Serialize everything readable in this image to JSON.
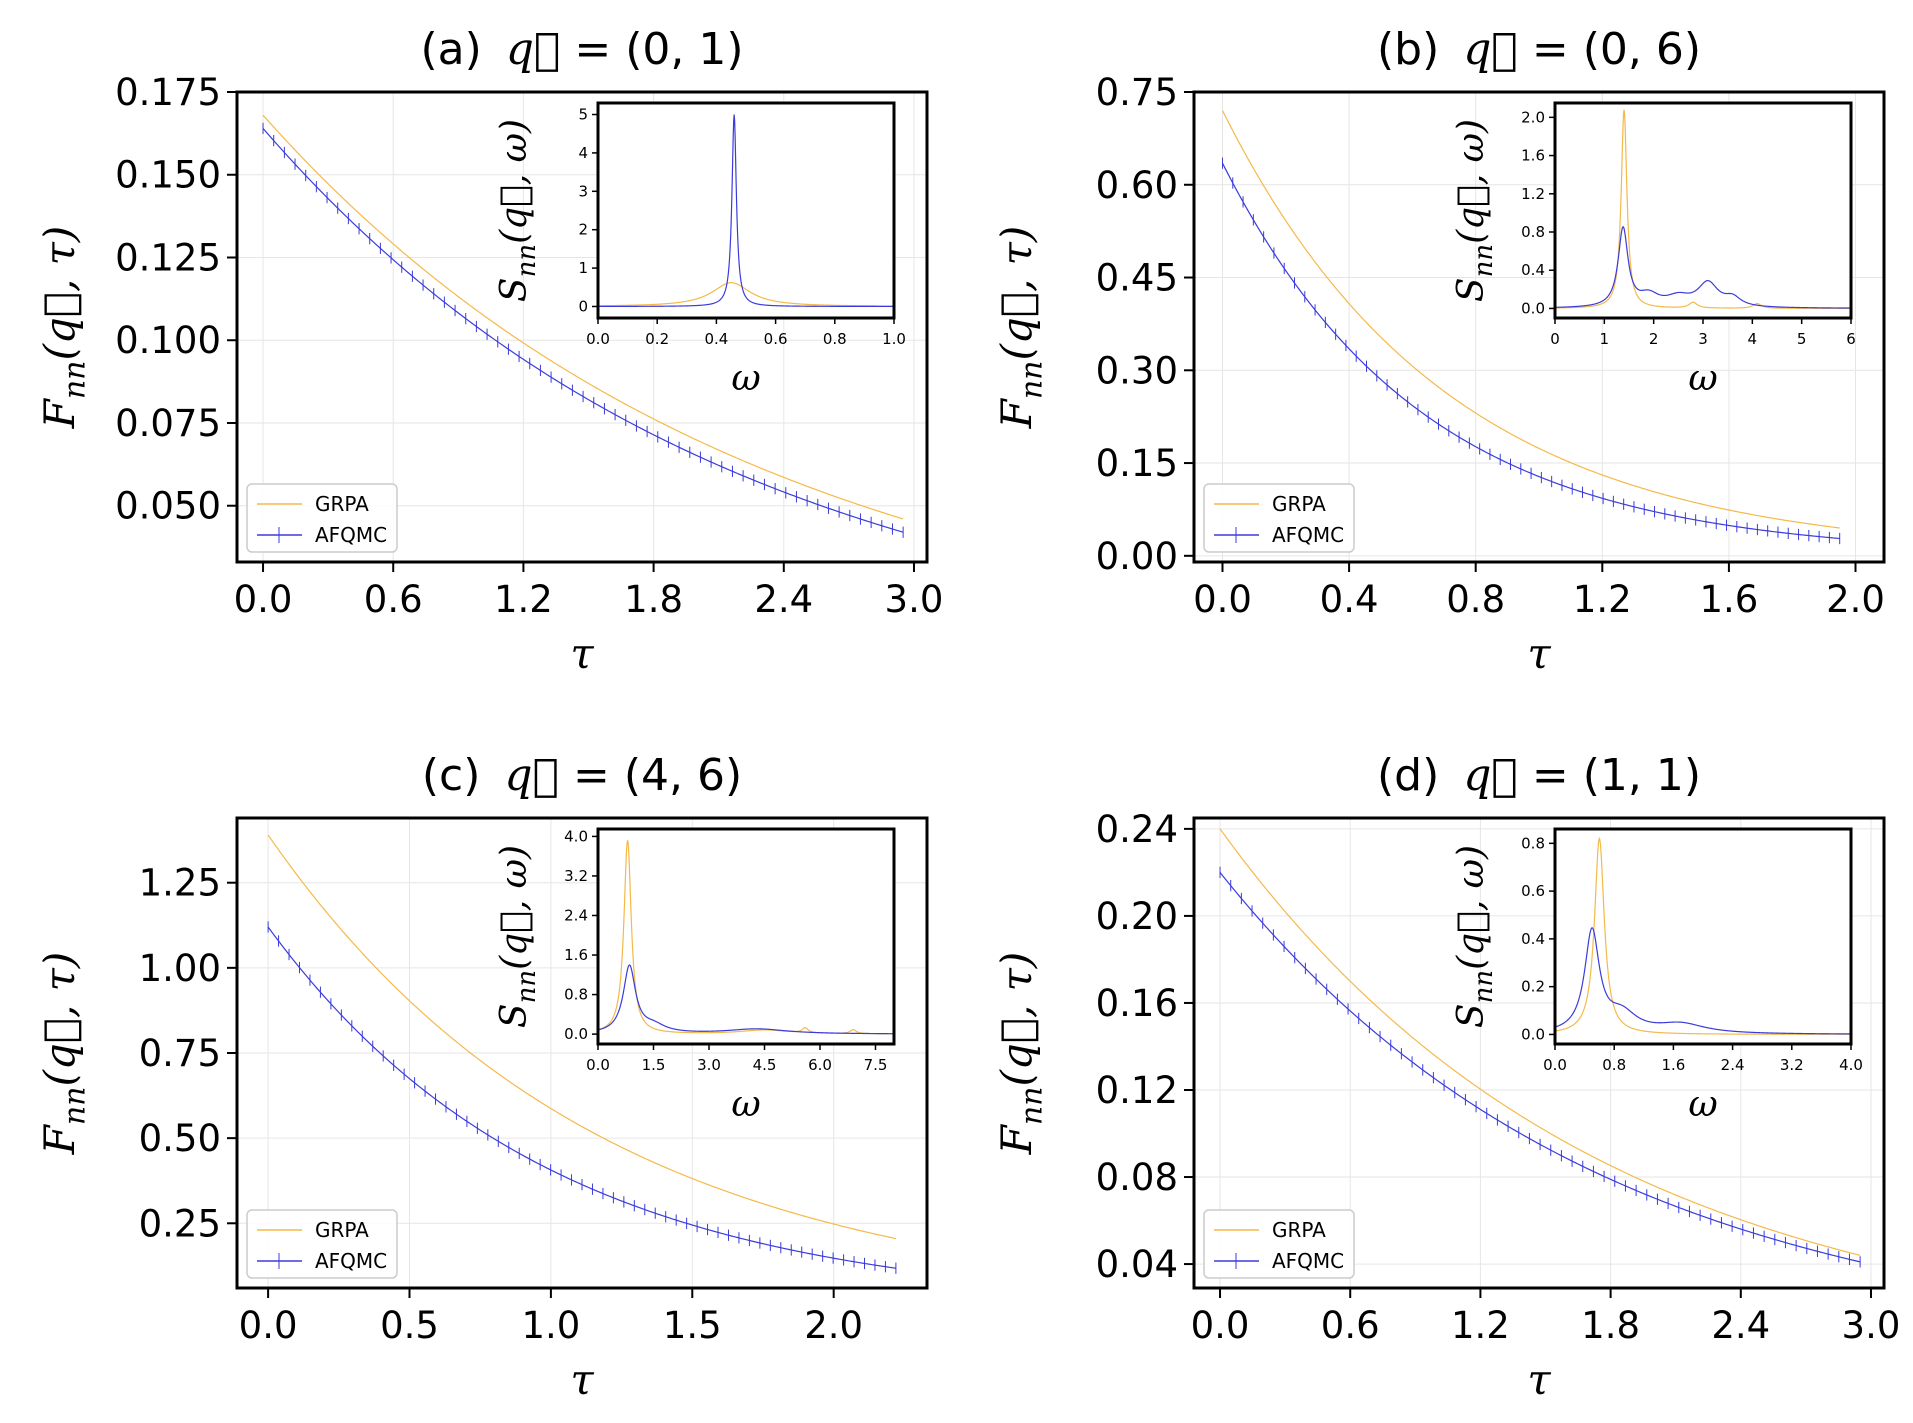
{
  "chart_data": [
    {
      "id": "a",
      "type": "line",
      "title_tag": "(a)",
      "title_q": "(0, 1)",
      "xlabel": "τ",
      "ylabel": "F_nn(q, τ)",
      "xlim": [
        -0.12,
        3.06
      ],
      "ylim": [
        0.033,
        0.175
      ],
      "xticks": [
        "0.0",
        "0.6",
        "1.2",
        "1.8",
        "2.4",
        "3.0"
      ],
      "yticks": [
        "0.050",
        "0.075",
        "0.100",
        "0.125",
        "0.150",
        "0.175"
      ],
      "legend": {
        "position": "lower-left",
        "entries": [
          "GRPA",
          "AFQMC"
        ]
      },
      "series": [
        {
          "name": "GRPA",
          "color": "#f5b94a",
          "errorbars": false,
          "x0": 0.0,
          "x1": 2.95,
          "y0": 0.168,
          "y1": 0.046,
          "n": 60
        },
        {
          "name": "AFQMC",
          "color": "#3b3bdc",
          "errorbars": true,
          "x0": 0.0,
          "x1": 2.95,
          "y0": 0.164,
          "y1": 0.042,
          "n": 60
        }
      ],
      "inset": {
        "xlabel": "ω",
        "ylabel": "S_nn(q, ω)",
        "xlim": [
          0,
          1.0
        ],
        "ylim": [
          -0.3,
          5.3
        ],
        "xticks": [
          "0.0",
          "0.2",
          "0.4",
          "0.6",
          "0.8",
          "1.0"
        ],
        "yticks": [
          "0",
          "1",
          "2",
          "3",
          "4",
          "5"
        ],
        "series": [
          {
            "name": "GRPA",
            "color": "#f5b94a",
            "peaks": [
              {
                "x": 0.45,
                "h": 0.62,
                "w": 0.08
              }
            ]
          },
          {
            "name": "AFQMC",
            "color": "#3b3bdc",
            "peaks": [
              {
                "x": 0.46,
                "h": 5.0,
                "w": 0.009
              }
            ]
          }
        ]
      }
    },
    {
      "id": "b",
      "type": "line",
      "title_tag": "(b)",
      "title_q": "(0, 6)",
      "xlabel": "τ",
      "ylabel": "F_nn(q, τ)",
      "xlim": [
        -0.09,
        2.09
      ],
      "ylim": [
        -0.01,
        0.75
      ],
      "xticks": [
        "0.0",
        "0.4",
        "0.8",
        "1.2",
        "1.6",
        "2.0"
      ],
      "yticks": [
        "0.00",
        "0.15",
        "0.30",
        "0.45",
        "0.60",
        "0.75"
      ],
      "legend": {
        "position": "lower-left",
        "entries": [
          "GRPA",
          "AFQMC"
        ]
      },
      "series": [
        {
          "name": "GRPA",
          "color": "#f5b94a",
          "errorbars": false,
          "x0": 0.0,
          "x1": 1.95,
          "y0": 0.72,
          "y1": 0.045,
          "n": 60
        },
        {
          "name": "AFQMC",
          "color": "#3b3bdc",
          "errorbars": true,
          "x0": 0.0,
          "x1": 1.95,
          "y0": 0.635,
          "y1": 0.028,
          "n": 60
        }
      ],
      "inset": {
        "xlabel": "ω",
        "ylabel": "S_nn(q, ω)",
        "xlim": [
          0,
          6
        ],
        "ylim": [
          -0.1,
          2.15
        ],
        "xticks": [
          "0",
          "1",
          "2",
          "3",
          "4",
          "5",
          "6"
        ],
        "yticks": [
          "0.0",
          "0.4",
          "0.8",
          "1.2",
          "1.6",
          "2.0"
        ],
        "series": [
          {
            "name": "GRPA",
            "color": "#f5b94a",
            "peaks": [
              {
                "x": 1.4,
                "h": 2.08,
                "w": 0.07
              },
              {
                "x": 2.8,
                "h": 0.06,
                "w": 0.1
              },
              {
                "x": 4.1,
                "h": 0.05,
                "w": 0.1
              }
            ]
          },
          {
            "name": "AFQMC",
            "color": "#3b3bdc",
            "peaks": [
              {
                "x": 1.38,
                "h": 0.82,
                "w": 0.12
              },
              {
                "x": 1.9,
                "h": 0.12,
                "w": 0.25
              },
              {
                "x": 2.5,
                "h": 0.1,
                "w": 0.3
              },
              {
                "x": 3.1,
                "h": 0.25,
                "w": 0.25
              },
              {
                "x": 3.6,
                "h": 0.09,
                "w": 0.2
              }
            ]
          }
        ]
      }
    },
    {
      "id": "c",
      "type": "line",
      "title_tag": "(c)",
      "title_q": "(4, 6)",
      "xlabel": "τ",
      "ylabel": "F_nn(q, τ)",
      "xlim": [
        -0.11,
        2.33
      ],
      "ylim": [
        0.06,
        1.44
      ],
      "xticks": [
        "0.0",
        "0.5",
        "1.0",
        "1.5",
        "2.0"
      ],
      "yticks": [
        "0.25",
        "0.50",
        "0.75",
        "1.00",
        "1.25"
      ],
      "legend": {
        "position": "lower-left",
        "entries": [
          "GRPA",
          "AFQMC"
        ]
      },
      "series": [
        {
          "name": "GRPA",
          "color": "#f5b94a",
          "errorbars": false,
          "x0": 0.0,
          "x1": 2.22,
          "y0": 1.39,
          "y1": 0.205,
          "n": 60
        },
        {
          "name": "AFQMC",
          "color": "#3b3bdc",
          "errorbars": true,
          "x0": 0.0,
          "x1": 2.22,
          "y0": 1.12,
          "y1": 0.118,
          "n": 60
        }
      ],
      "inset": {
        "xlabel": "ω",
        "ylabel": "S_nn(q, ω)",
        "xlim": [
          0,
          8.0
        ],
        "ylim": [
          -0.2,
          4.15
        ],
        "xticks": [
          "0.0",
          "1.5",
          "3.0",
          "4.5",
          "6.0",
          "7.5"
        ],
        "yticks": [
          "0.0",
          "0.8",
          "1.6",
          "2.4",
          "3.2",
          "4.0"
        ],
        "series": [
          {
            "name": "GRPA",
            "color": "#f5b94a",
            "peaks": [
              {
                "x": 0.8,
                "h": 3.92,
                "w": 0.12
              },
              {
                "x": 4.5,
                "h": 0.08,
                "w": 0.8
              },
              {
                "x": 5.6,
                "h": 0.1,
                "w": 0.1
              },
              {
                "x": 6.9,
                "h": 0.08,
                "w": 0.1
              }
            ]
          },
          {
            "name": "AFQMC",
            "color": "#3b3bdc",
            "peaks": [
              {
                "x": 0.85,
                "h": 1.35,
                "w": 0.2
              },
              {
                "x": 1.5,
                "h": 0.15,
                "w": 0.4
              },
              {
                "x": 4.3,
                "h": 0.1,
                "w": 1.0
              }
            ]
          }
        ]
      }
    },
    {
      "id": "d",
      "type": "line",
      "title_tag": "(d)",
      "title_q": "(1, 1)",
      "xlabel": "τ",
      "ylabel": "F_nn(q, τ)",
      "xlim": [
        -0.12,
        3.06
      ],
      "ylim": [
        0.029,
        0.245
      ],
      "xticks": [
        "0.0",
        "0.6",
        "1.2",
        "1.8",
        "2.4",
        "3.0"
      ],
      "yticks": [
        "0.04",
        "0.08",
        "0.12",
        "0.16",
        "0.20",
        "0.24"
      ],
      "legend": {
        "position": "lower-left",
        "entries": [
          "GRPA",
          "AFQMC"
        ]
      },
      "series": [
        {
          "name": "GRPA",
          "color": "#f5b94a",
          "errorbars": false,
          "x0": 0.0,
          "x1": 2.95,
          "y0": 0.24,
          "y1": 0.044,
          "n": 60
        },
        {
          "name": "AFQMC",
          "color": "#3b3bdc",
          "errorbars": true,
          "x0": 0.0,
          "x1": 2.95,
          "y0": 0.22,
          "y1": 0.041,
          "n": 60
        }
      ],
      "inset": {
        "xlabel": "ω",
        "ylabel": "S_nn(q, ω)",
        "xlim": [
          0,
          4.0
        ],
        "ylim": [
          -0.04,
          0.86
        ],
        "xticks": [
          "0.0",
          "0.8",
          "1.6",
          "2.4",
          "3.2",
          "4.0"
        ],
        "yticks": [
          "0.0",
          "0.2",
          "0.4",
          "0.6",
          "0.8"
        ],
        "series": [
          {
            "name": "GRPA",
            "color": "#f5b94a",
            "peaks": [
              {
                "x": 0.6,
                "h": 0.82,
                "w": 0.08
              }
            ]
          },
          {
            "name": "AFQMC",
            "color": "#3b3bdc",
            "peaks": [
              {
                "x": 0.5,
                "h": 0.42,
                "w": 0.12
              },
              {
                "x": 0.9,
                "h": 0.08,
                "w": 0.25
              },
              {
                "x": 1.7,
                "h": 0.04,
                "w": 0.4
              }
            ]
          }
        ]
      }
    }
  ]
}
